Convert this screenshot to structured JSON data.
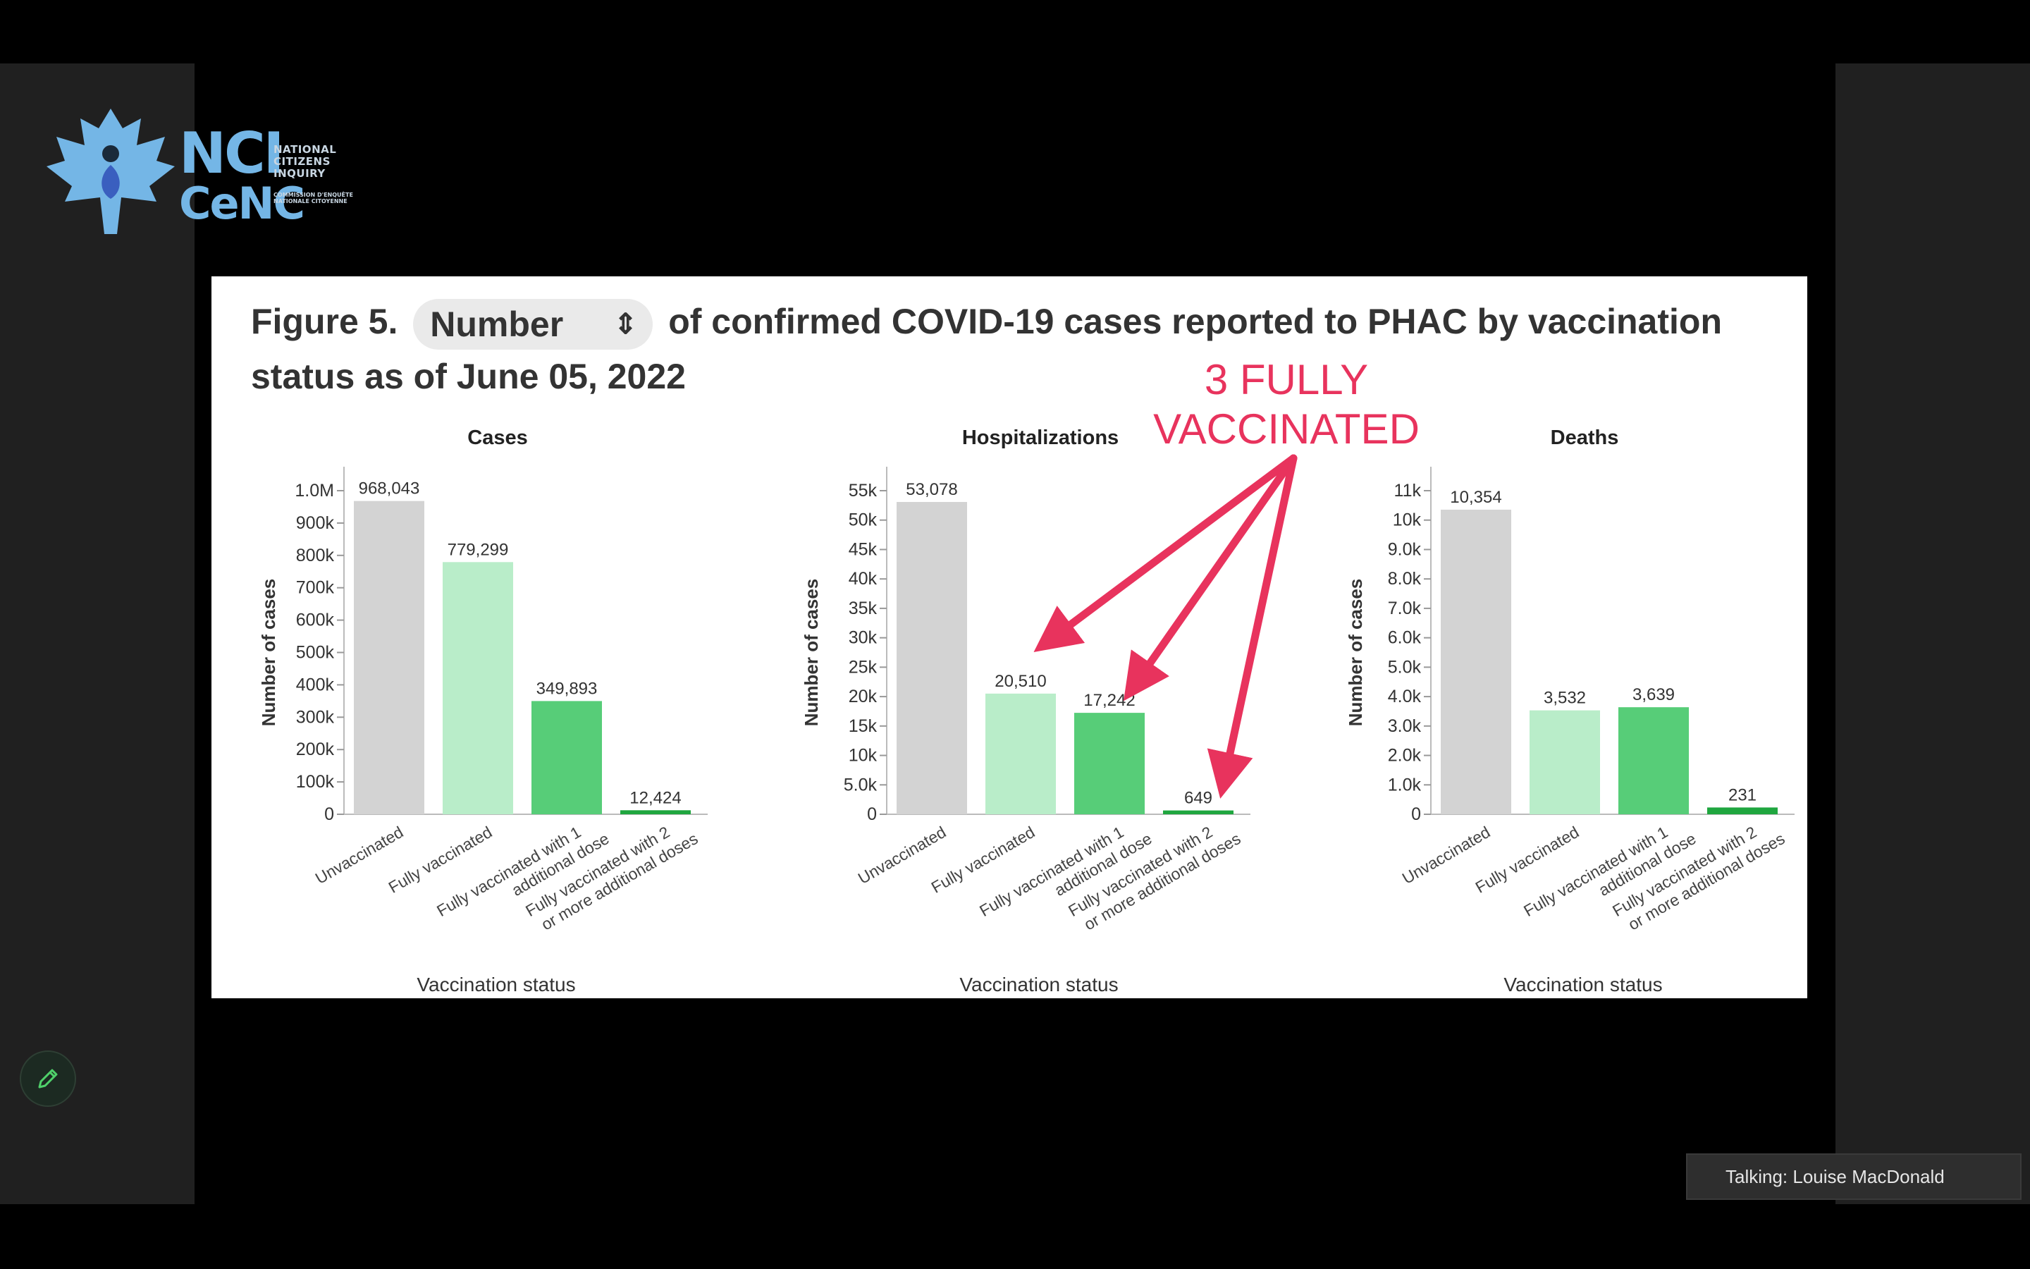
{
  "logo": {
    "abbr_en": "NCI",
    "abbr_fr": "CeNC",
    "name_en": "NATIONAL CITIZENS INQUIRY",
    "name_fr": "COMMISSION D'ENQUÊTE NATIONALE CITOYENNE"
  },
  "slide": {
    "title_prefix": "Figure 5.",
    "metric_selector": "Number",
    "title_suffix": "of confirmed COVID-19 cases reported to PHAC by vaccination status as of June 05, 2022",
    "annotation": "3 FULLY VACCINATED"
  },
  "chart_data": [
    {
      "type": "bar",
      "title": "Cases",
      "xlabel": "Vaccination status",
      "ylabel": "Number of cases",
      "categories": [
        "Unvaccinated",
        "Fully vaccinated",
        "Fully vaccinated with 1 additional dose",
        "Fully vaccinated with 2 or more additional doses"
      ],
      "values": [
        968043,
        779299,
        349893,
        12424
      ],
      "data_labels": [
        "968,043",
        "779,299",
        "349,893",
        "12,424"
      ],
      "ylim": [
        0,
        1000000
      ],
      "yticks": [
        0,
        100000,
        200000,
        300000,
        400000,
        500000,
        600000,
        700000,
        800000,
        900000,
        1000000
      ],
      "ytick_labels": [
        "0",
        "100k",
        "200k",
        "300k",
        "400k",
        "500k",
        "600k",
        "700k",
        "800k",
        "900k",
        "1.0M"
      ]
    },
    {
      "type": "bar",
      "title": "Hospitalizations",
      "xlabel": "Vaccination status",
      "ylabel": "Number of cases",
      "categories": [
        "Unvaccinated",
        "Fully vaccinated",
        "Fully vaccinated with 1 additional dose",
        "Fully vaccinated with 2 or more additional doses"
      ],
      "values": [
        53078,
        20510,
        17242,
        649
      ],
      "data_labels": [
        "53,078",
        "20,510",
        "17,242",
        "649"
      ],
      "ylim": [
        0,
        55000
      ],
      "yticks": [
        0,
        5000,
        10000,
        15000,
        20000,
        25000,
        30000,
        35000,
        40000,
        45000,
        50000,
        55000
      ],
      "ytick_labels": [
        "0",
        "5.0k",
        "10k",
        "15k",
        "20k",
        "25k",
        "30k",
        "35k",
        "40k",
        "45k",
        "50k",
        "55k"
      ]
    },
    {
      "type": "bar",
      "title": "Deaths",
      "xlabel": "Vaccination status",
      "ylabel": "Number of cases",
      "categories": [
        "Unvaccinated",
        "Fully vaccinated",
        "Fully vaccinated with 1 additional dose",
        "Fully vaccinated with 2 or more additional doses"
      ],
      "values": [
        10354,
        3532,
        3639,
        231
      ],
      "data_labels": [
        "10,354",
        "3,532",
        "3,639",
        "231"
      ],
      "ylim": [
        0,
        11000
      ],
      "yticks": [
        0,
        1000,
        2000,
        3000,
        4000,
        5000,
        6000,
        7000,
        8000,
        9000,
        10000,
        11000
      ],
      "ytick_labels": [
        "0",
        "1.0k",
        "2.0k",
        "3.0k",
        "4.0k",
        "5.0k",
        "6.0k",
        "7.0k",
        "8.0k",
        "9.0k",
        "10k",
        "11k"
      ]
    }
  ],
  "bar_colors": [
    "#d3d3d3",
    "#b9edc9",
    "#57cd78",
    "#1fa63f"
  ],
  "annotation_color": "#e8335d",
  "controls": {
    "pen_icon": "pencil-icon"
  },
  "status": {
    "talking": "Talking: Louise MacDonald"
  }
}
